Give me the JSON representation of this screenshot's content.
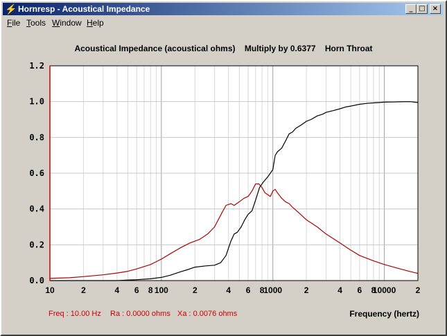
{
  "window": {
    "title": "Hornresp - Acoustical Impedance",
    "icon": "lightning-icon",
    "controls": {
      "minimize": "_",
      "maximize": "□",
      "close": "×"
    }
  },
  "menu": {
    "file": {
      "mnemonic": "F",
      "rest": "ile"
    },
    "tools": {
      "mnemonic": "T",
      "rest": "ools"
    },
    "window": {
      "mnemonic": "W",
      "rest": "indow"
    },
    "help": {
      "mnemonic": "H",
      "rest": "elp"
    }
  },
  "status": {
    "freq": "Freq : 10.00 Hz",
    "ra": "Ra : 0.0000 ohms",
    "xa": "Xa : 0.0076 ohms"
  },
  "chart_data": {
    "type": "line",
    "title": "Acoustical Impedance (acoustical ohms)    Multiply by 0.6377    Horn Throat",
    "xlabel": "Frequency (hertz)",
    "ylabel": "",
    "x_scale": "log",
    "xlim": [
      10,
      20000
    ],
    "ylim": [
      0,
      1.2
    ],
    "grid": true,
    "y_ticks": [
      "0.0",
      "0.2",
      "0.4",
      "0.6",
      "0.8",
      "1.0",
      "1.2"
    ],
    "x_ticks": [
      {
        "value": 10,
        "label": "10"
      },
      {
        "value": 20,
        "label": "2"
      },
      {
        "value": 40,
        "label": "4"
      },
      {
        "value": 60,
        "label": "6"
      },
      {
        "value": 80,
        "label": "8"
      },
      {
        "value": 100,
        "label": "100"
      },
      {
        "value": 200,
        "label": "2"
      },
      {
        "value": 400,
        "label": "4"
      },
      {
        "value": 600,
        "label": "6"
      },
      {
        "value": 800,
        "label": "8"
      },
      {
        "value": 1000,
        "label": "1000"
      },
      {
        "value": 2000,
        "label": "2"
      },
      {
        "value": 4000,
        "label": "4"
      },
      {
        "value": 6000,
        "label": "6"
      },
      {
        "value": 8000,
        "label": "8"
      },
      {
        "value": 10000,
        "label": "10000"
      },
      {
        "value": 20000,
        "label": "2"
      }
    ],
    "series": [
      {
        "color": "#000000",
        "x": [
          10,
          40,
          50,
          60,
          80,
          100,
          120,
          150,
          170,
          200,
          250,
          300,
          340,
          380,
          420,
          450,
          480,
          520,
          560,
          600,
          650,
          700,
          760,
          820,
          900,
          950,
          1000,
          1050,
          1100,
          1200,
          1300,
          1400,
          1500,
          1600,
          1800,
          2000,
          2200,
          2500,
          2800,
          3000,
          3500,
          4000,
          4500,
          5000,
          6000,
          7000,
          8000,
          9000,
          10000,
          12000,
          14000,
          17000,
          20000
        ],
        "y": [
          0.0,
          0.0,
          0.003,
          0.005,
          0.01,
          0.018,
          0.03,
          0.05,
          0.06,
          0.075,
          0.082,
          0.086,
          0.1,
          0.14,
          0.22,
          0.26,
          0.27,
          0.3,
          0.34,
          0.37,
          0.39,
          0.45,
          0.52,
          0.55,
          0.58,
          0.6,
          0.62,
          0.7,
          0.72,
          0.74,
          0.78,
          0.82,
          0.83,
          0.85,
          0.87,
          0.89,
          0.9,
          0.92,
          0.93,
          0.94,
          0.95,
          0.96,
          0.97,
          0.975,
          0.985,
          0.99,
          0.993,
          0.995,
          0.997,
          0.998,
          0.999,
          1.0,
          0.995
        ]
      },
      {
        "color": "#b00000",
        "x": [
          10,
          15,
          20,
          30,
          40,
          50,
          60,
          80,
          100,
          120,
          150,
          180,
          220,
          260,
          300,
          350,
          380,
          420,
          450,
          500,
          550,
          600,
          650,
          700,
          750,
          800,
          850,
          900,
          950,
          1000,
          1050,
          1100,
          1200,
          1300,
          1400,
          1500,
          1700,
          2000,
          2500,
          3000,
          4000,
          5000,
          6000,
          8000,
          10000,
          13000,
          16000,
          20000
        ],
        "y": [
          0.012,
          0.016,
          0.022,
          0.032,
          0.042,
          0.052,
          0.065,
          0.09,
          0.12,
          0.15,
          0.185,
          0.21,
          0.23,
          0.26,
          0.3,
          0.38,
          0.42,
          0.43,
          0.42,
          0.44,
          0.46,
          0.47,
          0.5,
          0.54,
          0.54,
          0.52,
          0.49,
          0.48,
          0.47,
          0.5,
          0.51,
          0.49,
          0.46,
          0.44,
          0.43,
          0.41,
          0.38,
          0.34,
          0.3,
          0.26,
          0.21,
          0.17,
          0.14,
          0.11,
          0.09,
          0.07,
          0.055,
          0.04
        ]
      }
    ]
  }
}
